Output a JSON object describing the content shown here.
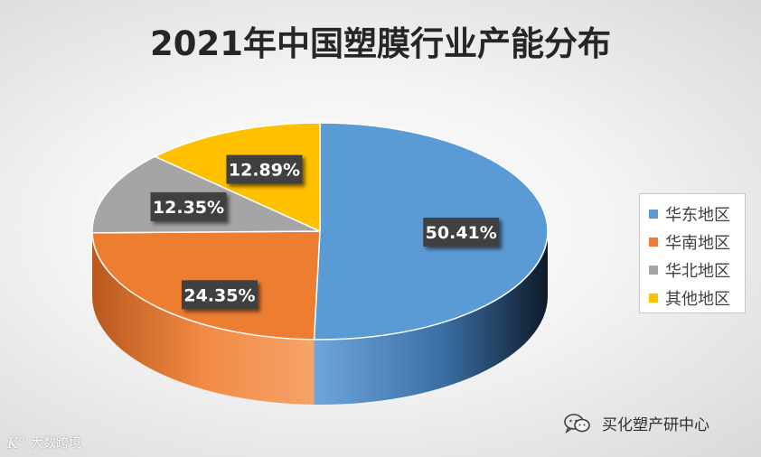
{
  "chart_data": {
    "type": "pie",
    "style": "3d",
    "title": "2021年中国塑膜行业产能分布",
    "categories": [
      "华东地区",
      "华南地区",
      "华北地区",
      "其他地区"
    ],
    "values": [
      50.41,
      24.35,
      12.35,
      12.89
    ],
    "labels": [
      "50.41%",
      "24.35%",
      "12.35%",
      "12.89%"
    ],
    "colors": [
      "#5b9bd5",
      "#ed7d31",
      "#a5a5a5",
      "#ffc000"
    ],
    "legend_position": "right"
  },
  "watermarks": {
    "left_logo": "K°",
    "left_text": "大数跨境",
    "right_text": "买化塑产研中心",
    "right_icon": "wechat-icon"
  }
}
